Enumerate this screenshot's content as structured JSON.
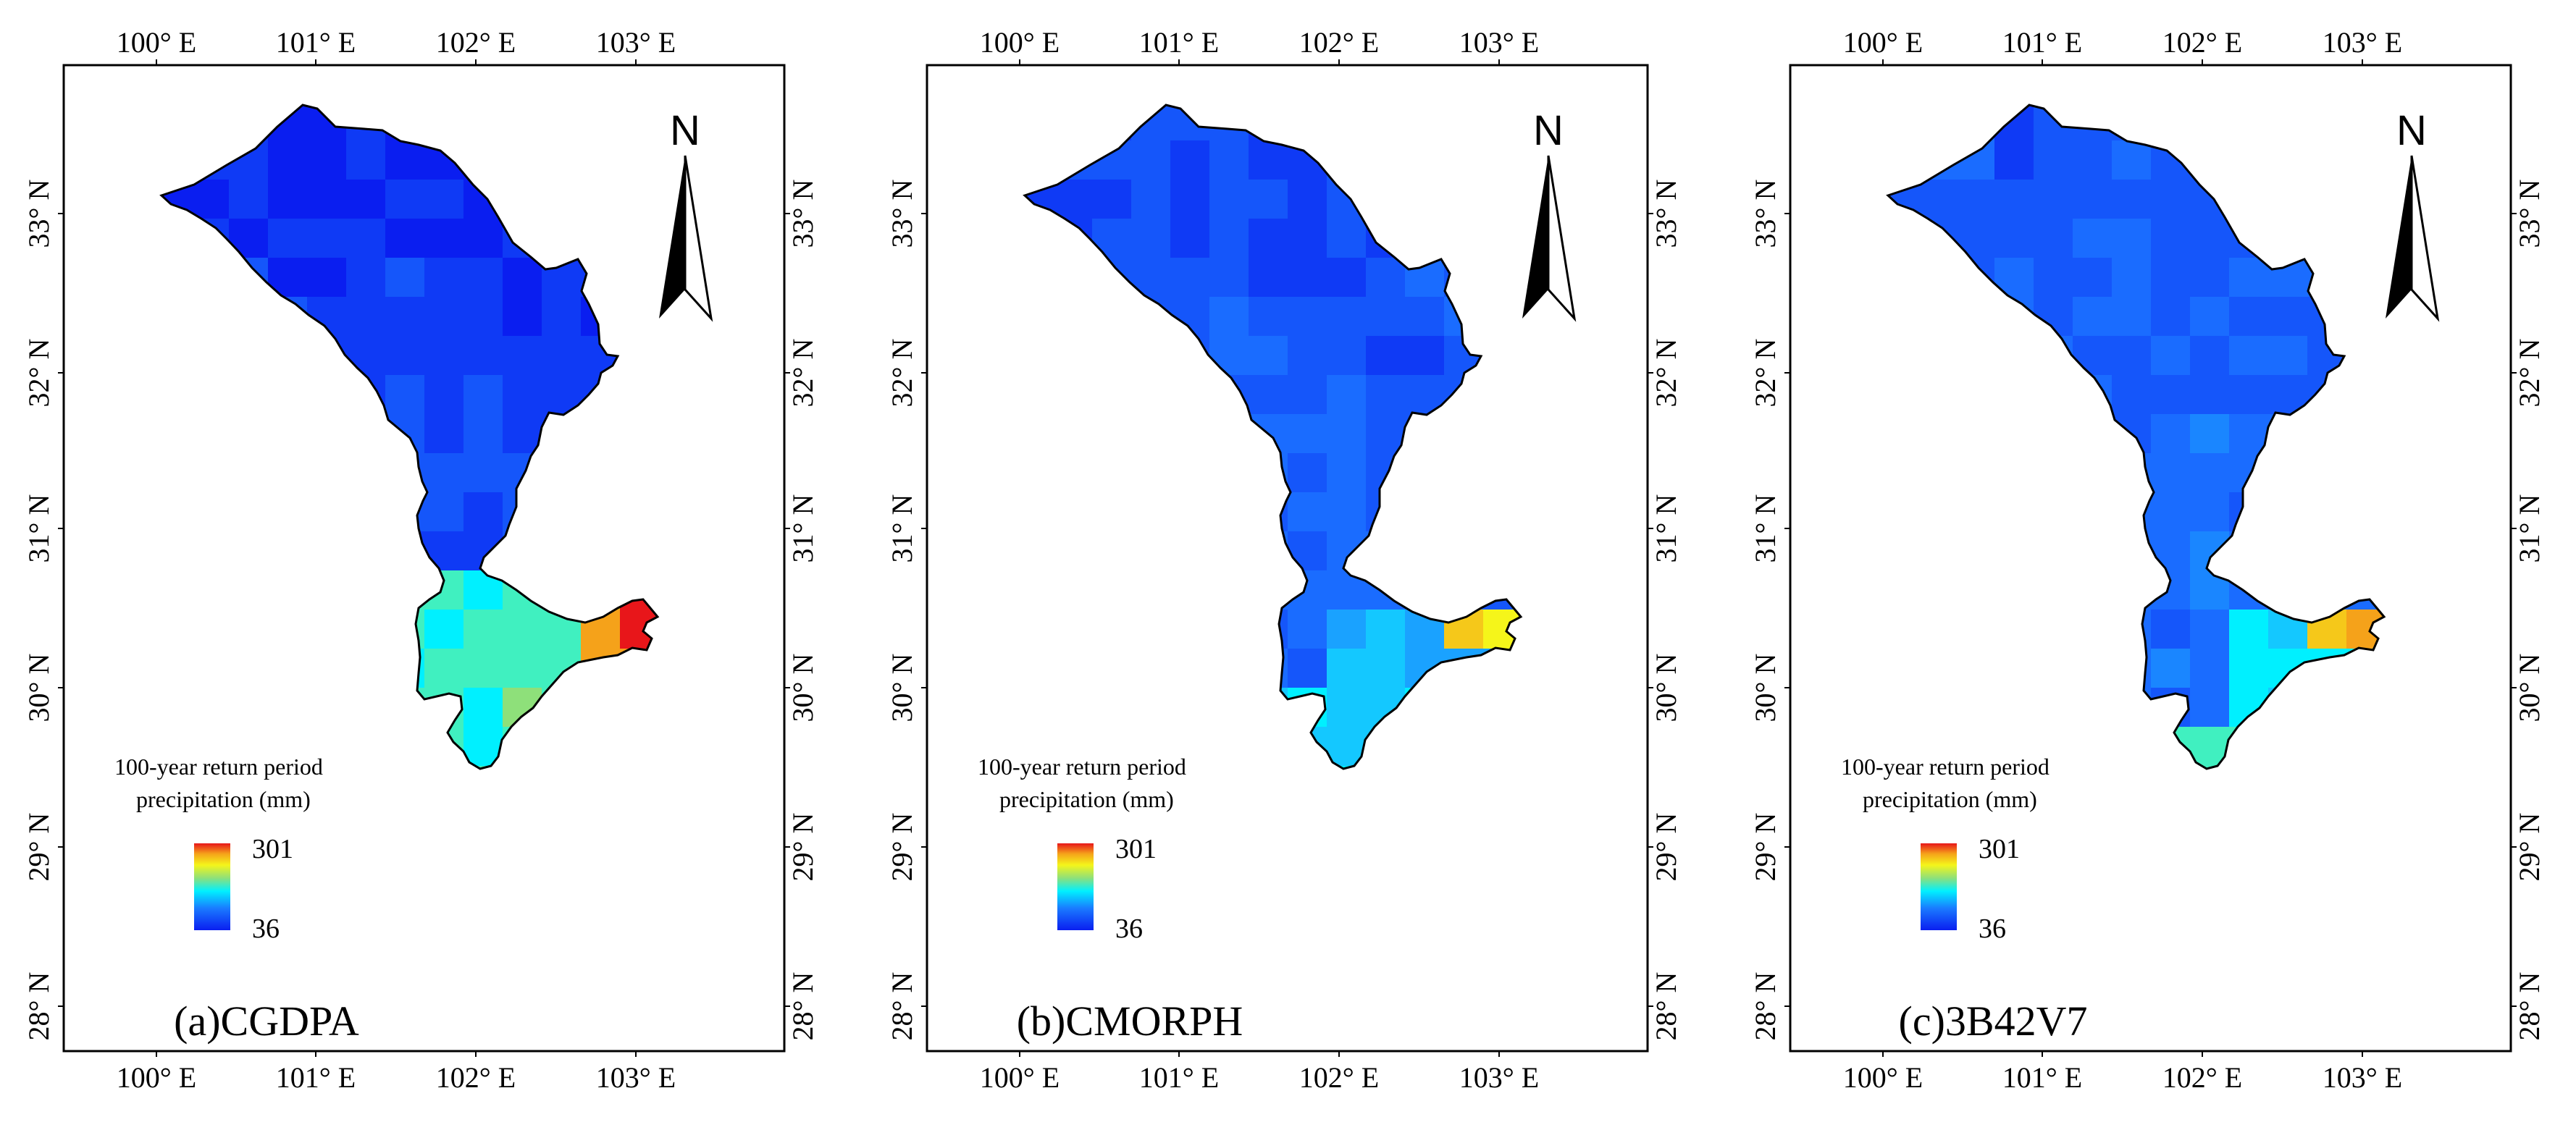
{
  "figure": {
    "panels": [
      {
        "id": "a",
        "label": "(a)CGDPA",
        "legend": {
          "title_line1": "100-year return period",
          "title_line2": "precipitation (mm)",
          "max_label": "301",
          "min_label": "36"
        },
        "north_arrow": {
          "label": "N"
        },
        "axes": {
          "lon_ticks": [
            "100° E",
            "101° E",
            "102° E",
            "103° E"
          ],
          "lat_ticks": [
            "33° N",
            "32° N",
            "31° N",
            "30° N",
            "29° N",
            "28° N"
          ]
        },
        "scheme": "cgdpa"
      },
      {
        "id": "b",
        "label": "(b)CMORPH",
        "legend": {
          "title_line1": "100-year return period",
          "title_line2": "precipitation (mm)",
          "max_label": "301",
          "min_label": "36"
        },
        "north_arrow": {
          "label": "N"
        },
        "axes": {
          "lon_ticks": [
            "100° E",
            "101° E",
            "102° E",
            "103° E"
          ],
          "lat_ticks": [
            "33° N",
            "32° N",
            "31° N",
            "30° N",
            "29° N",
            "28° N"
          ]
        },
        "scheme": "cmorph"
      },
      {
        "id": "c",
        "label": "(c)3B42V7",
        "legend": {
          "title_line1": "100-year return period",
          "title_line2": "precipitation (mm)",
          "max_label": "301",
          "min_label": "36"
        },
        "north_arrow": {
          "label": "N"
        },
        "axes": {
          "lon_ticks": [
            "100° E",
            "101° E",
            "102° E",
            "103° E"
          ],
          "lat_ticks": [
            "33° N",
            "32° N",
            "31° N",
            "30° N",
            "29° N",
            "28° N"
          ]
        },
        "scheme": "trmm"
      }
    ],
    "colors": {
      "low": "#0a1ef0",
      "mid_blue": "#1a7aff",
      "cyan": "#00f0ff",
      "green": "#8ee07a",
      "yellow": "#f5f51a",
      "orange": "#f5a21a",
      "high": "#e8161a"
    }
  }
}
